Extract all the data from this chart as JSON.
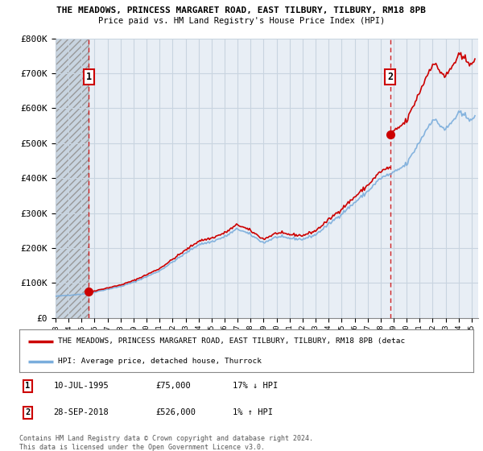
{
  "title1": "THE MEADOWS, PRINCESS MARGARET ROAD, EAST TILBURY, TILBURY, RM18 8PB",
  "title2": "Price paid vs. HM Land Registry's House Price Index (HPI)",
  "ylabel_ticks": [
    "£0",
    "£100K",
    "£200K",
    "£300K",
    "£400K",
    "£500K",
    "£600K",
    "£700K",
    "£800K"
  ],
  "ylabel_vals": [
    0,
    100000,
    200000,
    300000,
    400000,
    500000,
    600000,
    700000,
    800000
  ],
  "ylim": [
    0,
    800000
  ],
  "marker1_year": 1995.54,
  "marker1_value": 75000,
  "marker2_year": 2018.75,
  "marker2_value": 526000,
  "legend_line1": "THE MEADOWS, PRINCESS MARGARET ROAD, EAST TILBURY, TILBURY, RM18 8PB (detac",
  "legend_line2": "HPI: Average price, detached house, Thurrock",
  "table_row1": [
    "1",
    "10-JUL-1995",
    "£75,000",
    "17% ↓ HPI"
  ],
  "table_row2": [
    "2",
    "28-SEP-2018",
    "£526,000",
    "1% ↑ HPI"
  ],
  "footnote": "Contains HM Land Registry data © Crown copyright and database right 2024.\nThis data is licensed under the Open Government Licence v3.0.",
  "bg_color": "#ffffff",
  "plot_bg_color": "#e8eef5",
  "grid_color": "#c8d4e0",
  "hpi_color": "#7aaddc",
  "price_color": "#cc0000",
  "xlim_start": 1993.0,
  "xlim_end": 2025.5,
  "xtick_years": [
    1993,
    1994,
    1995,
    1996,
    1997,
    1998,
    1999,
    2000,
    2001,
    2002,
    2003,
    2004,
    2005,
    2006,
    2007,
    2008,
    2009,
    2010,
    2011,
    2012,
    2013,
    2014,
    2015,
    2016,
    2017,
    2018,
    2019,
    2020,
    2021,
    2022,
    2023,
    2024,
    2025
  ]
}
